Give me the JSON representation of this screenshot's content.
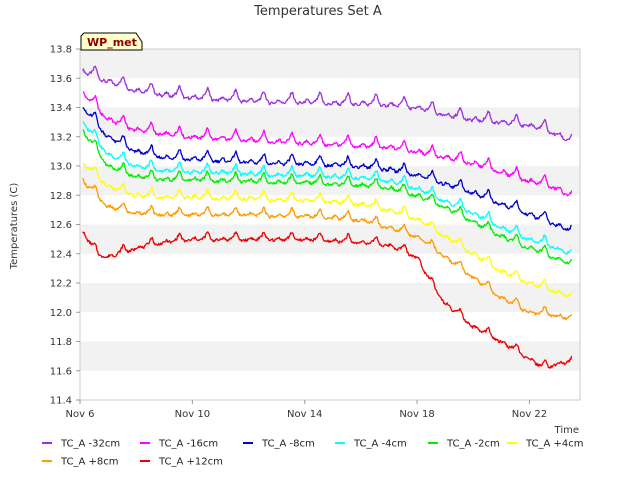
{
  "chart_data": {
    "type": "line",
    "title": "Temperatures Set A",
    "xlabel": "Time",
    "ylabel": "Temperatures (C)",
    "badge": "WP_met",
    "x_start_day": 6,
    "x_end_day": 23.8,
    "ylim": [
      11.4,
      13.8
    ],
    "yticks": [
      "11.4",
      "11.6",
      "11.8",
      "12.0",
      "12.2",
      "12.4",
      "12.6",
      "12.8",
      "13.0",
      "13.2",
      "13.4",
      "13.6",
      "13.8"
    ],
    "xticks": [
      {
        "day": 6,
        "label": "Nov 6"
      },
      {
        "day": 10,
        "label": "Nov 10"
      },
      {
        "day": 14,
        "label": "Nov 14"
      },
      {
        "day": 18,
        "label": "Nov 18"
      },
      {
        "day": 22,
        "label": "Nov 22"
      }
    ],
    "grid": "banded",
    "legend_position": "bottom",
    "series": [
      {
        "name": "TC_A -32cm",
        "color": "#9b30e0",
        "x": [
          6.1,
          7,
          8,
          9,
          10,
          11,
          12,
          13,
          14,
          15,
          16,
          17,
          18,
          19,
          20,
          21,
          22,
          23,
          23.5
        ],
        "y": [
          13.65,
          13.58,
          13.52,
          13.49,
          13.47,
          13.46,
          13.45,
          13.44,
          13.44,
          13.43,
          13.43,
          13.42,
          13.4,
          13.35,
          13.32,
          13.3,
          13.28,
          13.22,
          13.16
        ]
      },
      {
        "name": "TC_A -16cm",
        "color": "#ff00ff",
        "x": [
          6.1,
          7,
          8,
          9,
          10,
          11,
          12,
          13,
          14,
          15,
          16,
          17,
          18,
          19,
          20,
          21,
          22,
          23,
          23.5
        ],
        "y": [
          13.5,
          13.32,
          13.25,
          13.22,
          13.2,
          13.19,
          13.18,
          13.17,
          13.16,
          13.15,
          13.14,
          13.13,
          13.1,
          13.06,
          13.02,
          12.96,
          12.9,
          12.85,
          12.78
        ]
      },
      {
        "name": "TC_A -8cm",
        "color": "#0000cc",
        "x": [
          6.1,
          7,
          8,
          9,
          10,
          11,
          12,
          13,
          14,
          15,
          16,
          17,
          18,
          19,
          20,
          21,
          22,
          23,
          23.5
        ],
        "y": [
          13.4,
          13.2,
          13.1,
          13.06,
          13.05,
          13.04,
          13.03,
          13.02,
          13.02,
          13.01,
          13.0,
          12.98,
          12.94,
          12.88,
          12.82,
          12.74,
          12.67,
          12.6,
          12.55
        ]
      },
      {
        "name": "TC_A -4cm",
        "color": "#00ffff",
        "x": [
          6.1,
          7,
          8,
          9,
          10,
          11,
          12,
          13,
          14,
          15,
          16,
          17,
          18,
          19,
          20,
          21,
          22,
          23,
          23.5
        ],
        "y": [
          13.3,
          13.08,
          13.0,
          12.97,
          12.96,
          12.96,
          12.95,
          12.94,
          12.94,
          12.93,
          12.92,
          12.9,
          12.85,
          12.76,
          12.68,
          12.58,
          12.5,
          12.44,
          12.39
        ]
      },
      {
        "name": "TC_A -2cm",
        "color": "#00ee00",
        "x": [
          6.1,
          7,
          8,
          9,
          10,
          11,
          12,
          13,
          14,
          15,
          16,
          17,
          18,
          19,
          20,
          21,
          22,
          23,
          23.5
        ],
        "y": [
          13.24,
          13.0,
          12.93,
          12.91,
          12.91,
          12.9,
          12.9,
          12.89,
          12.89,
          12.88,
          12.87,
          12.85,
          12.8,
          12.72,
          12.62,
          12.52,
          12.44,
          12.37,
          12.32
        ]
      },
      {
        "name": "TC_A +4cm",
        "color": "#ffff00",
        "x": [
          6.1,
          7,
          8,
          9,
          10,
          11,
          12,
          13,
          14,
          15,
          16,
          17,
          18,
          19,
          20,
          21,
          22,
          23,
          23.5
        ],
        "y": [
          13.02,
          12.86,
          12.8,
          12.79,
          12.79,
          12.78,
          12.78,
          12.77,
          12.77,
          12.76,
          12.74,
          12.7,
          12.64,
          12.52,
          12.4,
          12.28,
          12.2,
          12.14,
          12.1
        ]
      },
      {
        "name": "TC_A +8cm",
        "color": "#ff9900",
        "x": [
          6.1,
          7,
          8,
          9,
          10,
          11,
          12,
          13,
          14,
          15,
          16,
          17,
          18,
          19,
          20,
          21,
          22,
          23,
          23.5
        ],
        "y": [
          12.9,
          12.72,
          12.68,
          12.67,
          12.67,
          12.67,
          12.67,
          12.66,
          12.66,
          12.65,
          12.63,
          12.58,
          12.52,
          12.38,
          12.24,
          12.1,
          12.0,
          11.98,
          11.95
        ]
      },
      {
        "name": "TC_A +12cm",
        "color": "#ee0000",
        "x": [
          6.1,
          6.6,
          7,
          8,
          9,
          10,
          11,
          12,
          13,
          14,
          15,
          16,
          17,
          17.5,
          18,
          18.5,
          19,
          20,
          21,
          22,
          22.5,
          23,
          23.5
        ],
        "y": [
          12.55,
          12.4,
          12.38,
          12.44,
          12.48,
          12.5,
          12.5,
          12.5,
          12.5,
          12.5,
          12.49,
          12.48,
          12.46,
          12.42,
          12.38,
          12.2,
          12.06,
          11.9,
          11.8,
          11.68,
          11.62,
          11.65,
          11.66
        ]
      }
    ]
  }
}
